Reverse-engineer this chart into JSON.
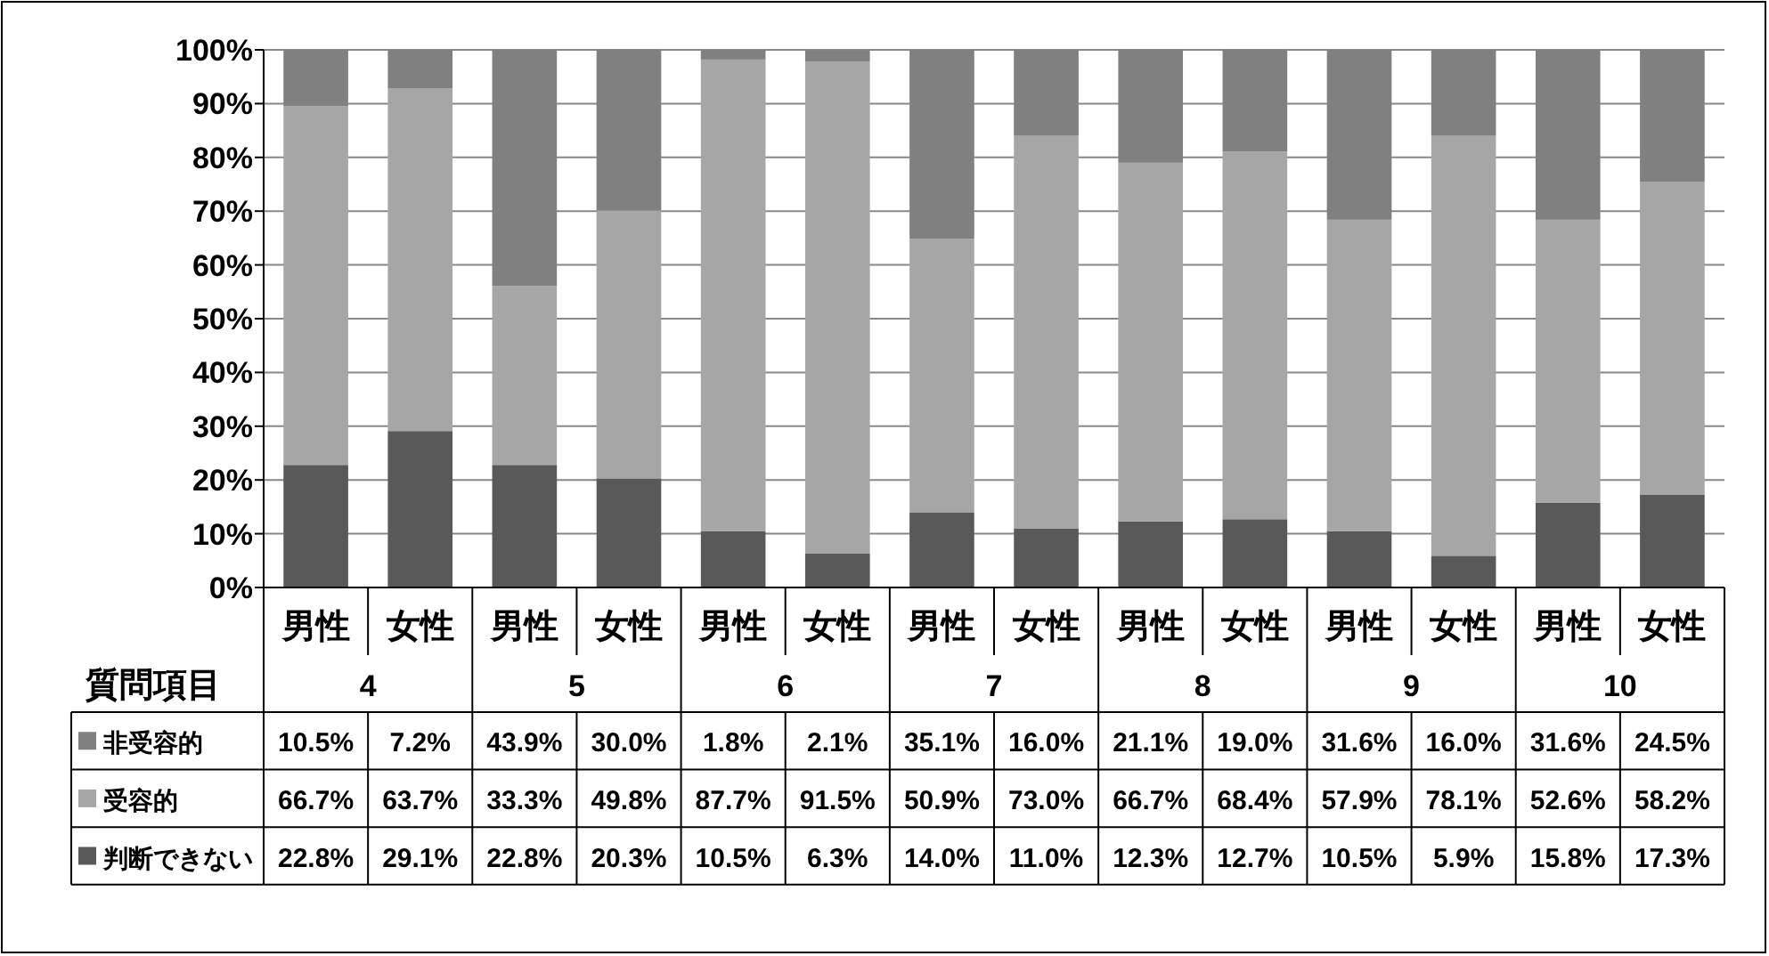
{
  "chart_data": {
    "type": "bar",
    "stacked": true,
    "categories": [
      "男性",
      "女性",
      "男性",
      "女性",
      "男性",
      "女性",
      "男性",
      "女性",
      "男性",
      "女性",
      "男性",
      "女性",
      "男性",
      "女性"
    ],
    "annotations": [
      "質問項目",
      "4",
      "5",
      "6",
      "7",
      "8",
      "9",
      "10"
    ],
    "ylim": [
      0,
      100
    ],
    "yticks": [
      {
        "value": 0,
        "label": "0%"
      },
      {
        "value": 10,
        "label": "10%"
      },
      {
        "value": 20,
        "label": "20%"
      },
      {
        "value": 30,
        "label": "30%"
      },
      {
        "value": 40,
        "label": "40%"
      },
      {
        "value": 50,
        "label": "50%"
      },
      {
        "value": 60,
        "label": "60%"
      },
      {
        "value": 70,
        "label": "70%"
      },
      {
        "value": 80,
        "label": "80%"
      },
      {
        "value": 90,
        "label": "90%"
      },
      {
        "value": 100,
        "label": "100%"
      }
    ],
    "grid": "y",
    "legend": "bottom",
    "series": [
      {
        "name": "判断できない",
        "color": "#595959",
        "values": [
          22.8,
          29.1,
          22.8,
          20.3,
          10.5,
          6.3,
          14.0,
          11.0,
          12.3,
          12.7,
          10.5,
          5.9,
          15.8,
          17.3
        ],
        "value_labels": [
          "22.8%",
          "29.1%",
          "22.8%",
          "20.3%",
          "10.5%",
          "6.3%",
          "14.0%",
          "11.0%",
          "12.3%",
          "12.7%",
          "10.5%",
          "5.9%",
          "15.8%",
          "17.3%"
        ]
      },
      {
        "name": "受容的",
        "color": "#a6a6a6",
        "values": [
          66.7,
          63.7,
          33.3,
          49.8,
          87.7,
          91.5,
          50.9,
          73.0,
          66.7,
          68.4,
          57.9,
          78.1,
          52.6,
          58.2
        ],
        "value_labels": [
          "66.7%",
          "63.7%",
          "33.3%",
          "49.8%",
          "87.7%",
          "91.5%",
          "50.9%",
          "73.0%",
          "66.7%",
          "68.4%",
          "57.9%",
          "78.1%",
          "52.6%",
          "58.2%"
        ]
      },
      {
        "name": "非受容的",
        "color": "#808080",
        "values": [
          10.5,
          7.2,
          43.9,
          30.0,
          1.8,
          2.1,
          35.1,
          16.0,
          21.1,
          19.0,
          31.6,
          16.0,
          31.6,
          24.5
        ],
        "value_labels": [
          "10.5%",
          "7.2%",
          "43.9%",
          "30.0%",
          "1.8%",
          "2.1%",
          "35.1%",
          "16.0%",
          "21.1%",
          "19.0%",
          "31.6%",
          "16.0%",
          "31.6%",
          "24.5%"
        ]
      }
    ]
  }
}
